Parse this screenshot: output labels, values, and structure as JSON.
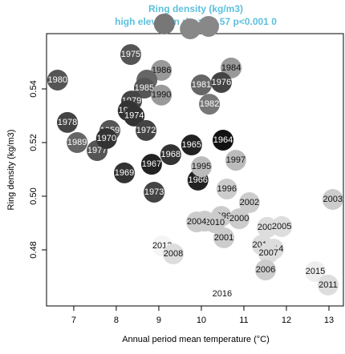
{
  "chart_data": {
    "type": "scatter",
    "title": "Ring density (kg/m3)",
    "subtitle": "high elevation rho= −0.57 p<0.001 0",
    "xlabel": "Annual period mean temperature (°C)",
    "ylabel": "Ring density (kg/m3)",
    "xlim": [
      6.36,
      13.34
    ],
    "ylim": [
      0.4591,
      0.5606
    ],
    "xticks": [
      7,
      8,
      9,
      10,
      11,
      12,
      13
    ],
    "yticks": [
      {
        "value": 0.48,
        "label": "0.48"
      },
      {
        "value": 0.5,
        "label": "0.50"
      },
      {
        "value": 0.52,
        "label": "0.52"
      },
      {
        "value": 0.54,
        "label": "0.54"
      }
    ],
    "labels": [
      null,
      null,
      null,
      "1984",
      "1986",
      "1976",
      "1981",
      "1982",
      null,
      "1985",
      "1979",
      "1971",
      "1974",
      "1990",
      "1980",
      "1975",
      "1978",
      "1989",
      "1977",
      "1959",
      "1970",
      "1972",
      "1965",
      "1964",
      "1968",
      "1967",
      "1969",
      "1973",
      "1966",
      "1995",
      "1997",
      "1996",
      "2002",
      "2003",
      "1999",
      "2009",
      "2010",
      "2000",
      "2004",
      "2009",
      "2005",
      "2001",
      "2012",
      "2014",
      "2007",
      "2013",
      "2008",
      "2006",
      "2015",
      "2011",
      "2016"
    ],
    "x": [
      9.13,
      9.74,
      10.17,
      10.7,
      9.06,
      10.47,
      10.0,
      10.19,
      8.72,
      8.66,
      8.36,
      8.28,
      8.42,
      9.06,
      6.62,
      8.34,
      6.85,
      7.08,
      7.55,
      7.85,
      7.77,
      8.7,
      9.77,
      10.51,
      9.28,
      8.83,
      8.19,
      8.89,
      9.92,
      10.0,
      10.81,
      10.6,
      11.13,
      13.09,
      10.47,
      10.08,
      10.32,
      10.89,
      9.89,
      11.55,
      11.89,
      10.53,
      11.43,
      11.7,
      11.58,
      9.08,
      9.34,
      11.51,
      12.68,
      12.98,
      10.49
    ],
    "y": [
      0.5642,
      0.5624,
      0.5633,
      0.5478,
      0.5469,
      0.5424,
      0.5415,
      0.5343,
      0.5433,
      0.5403,
      0.5355,
      0.5319,
      0.5299,
      0.5377,
      0.5433,
      0.5528,
      0.5275,
      0.52,
      0.517,
      0.5245,
      0.5215,
      0.5245,
      0.5191,
      0.5209,
      0.5155,
      0.5119,
      0.5087,
      0.5015,
      0.506,
      0.511,
      0.5134,
      0.5027,
      0.4976,
      0.4988,
      0.4925,
      0.4907,
      0.4901,
      0.4916,
      0.4904,
      0.4884,
      0.4887,
      0.4845,
      0.4818,
      0.4803,
      0.4788,
      0.4815,
      0.4785,
      0.4725,
      0.4719,
      0.4669,
      0.4636
    ],
    "colors": [
      "#777777",
      "#888888",
      "#888888",
      "#999999",
      "#999999",
      "#444444",
      "#666666",
      "#777777",
      "#666666",
      "#555555",
      "#444444",
      "#333333",
      "#333333",
      "#999999",
      "#555555",
      "#555555",
      "#444444",
      "#666666",
      "#555555",
      "#555555",
      "#333333",
      "#444444",
      "#222222",
      "#111111",
      "#333333",
      "#222222",
      "#333333",
      "#444444",
      "#222222",
      "#bbbbbb",
      "#bbbbbb",
      "#cccccc",
      "#cccccc",
      "#cccccc",
      "#cccccc",
      "#cccccc",
      "#cccccc",
      "#cccccc",
      "#cccccc",
      "#dddddd",
      "#dddddd",
      "#cccccc",
      "#dddddd",
      "#dddddd",
      "#dddddd",
      "#f5f5f5",
      "#dddddd",
      "#cccccc",
      "#eeeeee",
      "#dddddd",
      "#ffffff"
    ],
    "title_color": "#5bc0de"
  }
}
